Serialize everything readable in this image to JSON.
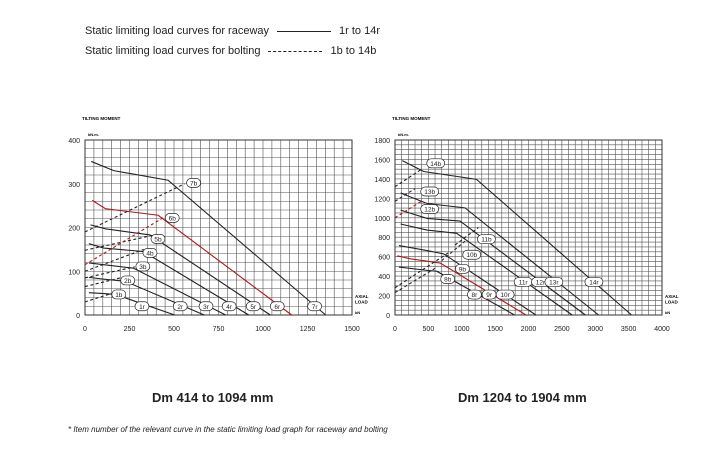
{
  "legend": {
    "raceway_label": "Static limiting load curves for raceway",
    "raceway_range": "1r to 14r",
    "bolting_label": "Static limiting load curves for bolting",
    "bolting_range": "1b to 14b"
  },
  "captions": [
    "Dm 414 to 1094 mm",
    "Dm 1204 to 1904 mm"
  ],
  "footnote": "* Item number of the relevant curve in the static limiting load graph for raceway and bolting",
  "chart_data": [
    {
      "type": "line",
      "ylabel": "TILTING MOMENT",
      "yunit": "kN.m.",
      "xlabel": "AXIAL LOAD",
      "xunit": "kN",
      "xlim": [
        0,
        1500
      ],
      "ylim": [
        0,
        400
      ],
      "xticks": [
        0,
        250,
        500,
        750,
        1000,
        1250,
        1500
      ],
      "yticks": [
        0,
        100,
        200,
        300,
        400
      ],
      "xgrid": 50,
      "ygrid": 20,
      "series": [
        {
          "name": "1r",
          "style": "solid",
          "color": "#222222",
          "points": [
            [
              22,
              51
            ],
            [
              105,
              49
            ],
            [
              170,
              47
            ],
            [
              504,
              0
            ]
          ],
          "label_at": [
            320,
            20
          ]
        },
        {
          "name": "2r",
          "style": "solid",
          "color": "#222222",
          "points": [
            [
              22,
              86
            ],
            [
              105,
              82
            ],
            [
              226,
              77
            ],
            [
              670,
              0
            ]
          ],
          "label_at": [
            535,
            20
          ]
        },
        {
          "name": "3r",
          "style": "solid",
          "color": "#222222",
          "points": [
            [
              22,
              119
            ],
            [
              105,
              115
            ],
            [
              272,
              107
            ],
            [
              790,
              0
            ]
          ],
          "label_at": [
            680,
            20
          ]
        },
        {
          "name": "4r",
          "style": "solid",
          "color": "#222222",
          "points": [
            [
              22,
              163
            ],
            [
              105,
              153
            ],
            [
              328,
              145
            ],
            [
              920,
              0
            ]
          ],
          "label_at": [
            810,
            20
          ]
        },
        {
          "name": "5r",
          "style": "solid",
          "color": "#222222",
          "points": [
            [
              31,
              206
            ],
            [
              115,
              197
            ],
            [
              365,
              183
            ],
            [
              1041,
              0
            ]
          ],
          "label_at": [
            945,
            20
          ]
        },
        {
          "name": "6r",
          "style": "solid",
          "color": "#b01818",
          "points": [
            [
              41,
              262
            ],
            [
              115,
              243
            ],
            [
              411,
              228
            ],
            [
              1161,
              0
            ]
          ],
          "label_at": [
            1080,
            20
          ]
        },
        {
          "name": "7r",
          "style": "solid",
          "color": "#222222",
          "points": [
            [
              35,
              351
            ],
            [
              161,
              330
            ],
            [
              467,
              308
            ],
            [
              1352,
              0
            ]
          ],
          "label_at": [
            1290,
            20
          ]
        },
        {
          "name": "1b",
          "style": "dashed",
          "color": "#222222",
          "points": [
            [
              0,
              30
            ],
            [
              170,
              52
            ]
          ],
          "label_at": [
            190,
            47
          ]
        },
        {
          "name": "2b",
          "style": "dashed",
          "color": "#222222",
          "points": [
            [
              0,
              65
            ],
            [
              230,
              88
            ]
          ],
          "label_at": [
            240,
            79
          ]
        },
        {
          "name": "3b",
          "style": "dashed",
          "color": "#222222",
          "points": [
            [
              0,
              85
            ],
            [
              280,
              110
            ]
          ],
          "label_at": [
            325,
            111
          ]
        },
        {
          "name": "4b",
          "style": "dashed",
          "color": "#222222",
          "points": [
            [
              0,
              100
            ],
            [
              330,
              150
            ]
          ],
          "label_at": [
            365,
            142
          ]
        },
        {
          "name": "5b",
          "style": "dashed",
          "color": "#222222",
          "points": [
            [
              0,
              148
            ],
            [
              380,
              182
            ]
          ],
          "label_at": [
            410,
            174
          ]
        },
        {
          "name": "6b",
          "style": "dashed",
          "color": "#b01818",
          "points": [
            [
              0,
              115
            ],
            [
              450,
              225
            ]
          ],
          "label_at": [
            490,
            222
          ]
        },
        {
          "name": "7b",
          "style": "dashed",
          "color": "#222222",
          "points": [
            [
              0,
              190
            ],
            [
              560,
              300
            ]
          ],
          "label_at": [
            610,
            302
          ]
        }
      ]
    },
    {
      "type": "line",
      "ylabel": "TILTING MOMENT",
      "yunit": "kN.m.",
      "xlabel": "AXIAL LOAD",
      "xunit": "kN",
      "xlim": [
        0,
        4000
      ],
      "ylim": [
        0,
        1800
      ],
      "xticks": [
        0,
        500,
        1000,
        1500,
        2000,
        2500,
        3000,
        3500,
        4000
      ],
      "yticks": [
        0,
        200,
        400,
        600,
        800,
        1000,
        1200,
        1400,
        1600,
        1800
      ],
      "xgrid": 100,
      "ygrid": 50,
      "series": [
        {
          "name": "8r",
          "style": "solid",
          "color": "#222222",
          "points": [
            [
              59,
              493
            ],
            [
              480,
              459
            ],
            [
              628,
              449
            ],
            [
              1790,
              0
            ]
          ],
          "label_at": [
            1190,
            210
          ]
        },
        {
          "name": "9r",
          "style": "solid",
          "color": "#b01818",
          "points": [
            [
              35,
              609
            ],
            [
              232,
              578
            ],
            [
              677,
              534
            ],
            [
              1963,
              0
            ]
          ],
          "label_at": [
            1410,
            210
          ]
        },
        {
          "name": "10r",
          "style": "solid",
          "color": "#222222",
          "points": [
            [
              59,
              714
            ],
            [
              480,
              663
            ],
            [
              727,
              629
            ],
            [
              2111,
              0
            ]
          ],
          "label_at": [
            1650,
            210
          ]
        },
        {
          "name": "11r",
          "style": "solid",
          "color": "#222222",
          "points": [
            [
              84,
              936
            ],
            [
              480,
              874
            ],
            [
              924,
              840
            ],
            [
              2654,
              0
            ]
          ],
          "label_at": [
            1920,
            340
          ]
        },
        {
          "name": "12r",
          "style": "solid",
          "color": "#222222",
          "points": [
            [
              84,
              1079
            ],
            [
              480,
              993
            ],
            [
              974,
              966
            ],
            [
              2852,
              0
            ]
          ],
          "label_at": [
            2180,
            340
          ]
        },
        {
          "name": "13r",
          "style": "solid",
          "color": "#222222",
          "points": [
            [
              84,
              1255
            ],
            [
              480,
              1147
            ],
            [
              1048,
              1102
            ],
            [
              3050,
              0
            ]
          ],
          "label_at": [
            2380,
            340
          ]
        },
        {
          "name": "14r",
          "style": "solid",
          "color": "#222222",
          "points": [
            [
              109,
              1588
            ],
            [
              430,
              1476
            ],
            [
              1221,
              1395
            ],
            [
              3544,
              0
            ]
          ],
          "label_at": [
            2980,
            340
          ]
        },
        {
          "name": "8b",
          "style": "dashed",
          "color": "#222222",
          "points": [
            [
              0,
              230
            ],
            [
              600,
              480
            ]
          ],
          "label_at": [
            790,
            370
          ]
        },
        {
          "name": "9b",
          "style": "dashed",
          "color": "#222222",
          "points": [
            [
              0,
              280
            ],
            [
              800,
              640
            ]
          ],
          "label_at": [
            1010,
            475
          ]
        },
        {
          "name": "10b",
          "style": "dashed",
          "color": "#222222",
          "points": [
            [
              700,
              560
            ],
            [
              1050,
              760
            ]
          ],
          "label_at": [
            1150,
            620
          ]
        },
        {
          "name": "11b",
          "style": "dashed",
          "color": "#222222",
          "points": [
            [
              900,
              720
            ],
            [
              1250,
              900
            ]
          ],
          "label_at": [
            1370,
            780
          ]
        },
        {
          "name": "12b",
          "style": "dashed",
          "color": "#b01818",
          "points": [
            [
              0,
              1000
            ],
            [
              420,
              1180
            ]
          ],
          "label_at": [
            520,
            1090
          ]
        },
        {
          "name": "13b",
          "style": "dashed",
          "color": "#222222",
          "points": [
            [
              0,
              1170
            ],
            [
              300,
              1300
            ]
          ],
          "label_at": [
            520,
            1270
          ]
        },
        {
          "name": "14b",
          "style": "dashed",
          "color": "#222222",
          "points": [
            [
              0,
              1320
            ],
            [
              400,
              1500
            ]
          ],
          "label_at": [
            610,
            1560
          ]
        }
      ]
    }
  ]
}
